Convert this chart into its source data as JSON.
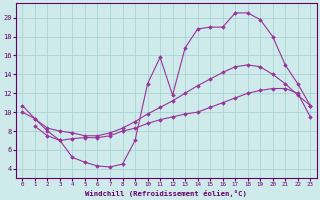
{
  "bg_color": "#ceeaea",
  "line_color": "#993399",
  "marker_color": "#993399",
  "grid_color": "#aad4d4",
  "axis_color": "#660066",
  "tick_color": "#660066",
  "xlabel": "Windchill (Refroidissement éolien,°C)",
  "xlim": [
    -0.5,
    23.5
  ],
  "ylim": [
    3.0,
    21.5
  ],
  "yticks": [
    4,
    6,
    8,
    10,
    12,
    14,
    16,
    18,
    20
  ],
  "xticks": [
    0,
    1,
    2,
    3,
    4,
    5,
    6,
    7,
    8,
    9,
    10,
    11,
    12,
    13,
    14,
    15,
    16,
    17,
    18,
    19,
    20,
    21,
    22,
    23
  ],
  "curve1_x": [
    0,
    1,
    2,
    3,
    4,
    5,
    6,
    7,
    8,
    9,
    10,
    11,
    12,
    13,
    14,
    15,
    16,
    17,
    18,
    19,
    20,
    21,
    22,
    23
  ],
  "curve1_y": [
    10.7,
    9.3,
    8.0,
    7.0,
    5.2,
    4.7,
    4.3,
    4.2,
    4.5,
    7.0,
    13.0,
    15.8,
    11.8,
    16.8,
    18.8,
    19.0,
    19.0,
    20.5,
    20.5,
    19.8,
    18.0,
    15.0,
    13.0,
    10.7
  ],
  "curve2_x": [
    0,
    1,
    2,
    3,
    4,
    5,
    6,
    7,
    8,
    9,
    10,
    11,
    12,
    13,
    14,
    15,
    16,
    17,
    18,
    19,
    20,
    21,
    22,
    23
  ],
  "curve2_y": [
    10.0,
    9.3,
    8.3,
    8.0,
    7.8,
    7.5,
    7.5,
    7.8,
    8.3,
    9.0,
    9.8,
    10.5,
    11.2,
    12.0,
    12.8,
    13.5,
    14.2,
    14.8,
    15.0,
    14.8,
    14.0,
    13.0,
    11.8,
    10.7
  ],
  "curve3_x": [
    1,
    2,
    3,
    4,
    5,
    6,
    7,
    8,
    9,
    10,
    11,
    12,
    13,
    14,
    15,
    16,
    17,
    18,
    19,
    20,
    21,
    22,
    23
  ],
  "curve3_y": [
    8.5,
    7.5,
    7.0,
    7.2,
    7.3,
    7.3,
    7.5,
    8.0,
    8.3,
    8.8,
    9.2,
    9.5,
    9.8,
    10.0,
    10.5,
    11.0,
    11.5,
    12.0,
    12.3,
    12.5,
    12.5,
    12.0,
    9.5
  ]
}
